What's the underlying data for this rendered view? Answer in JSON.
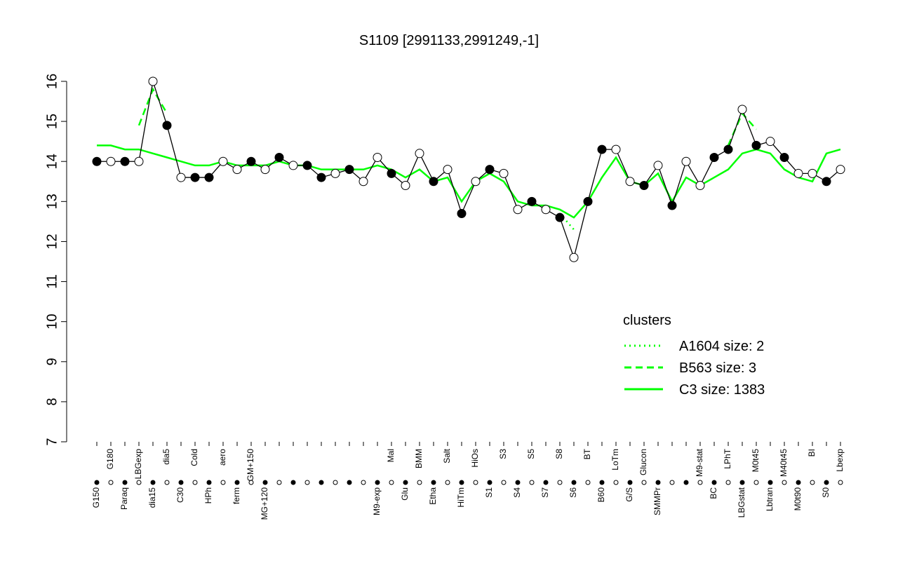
{
  "chart_data": {
    "type": "line",
    "title": "S1109 [2991133,2991249,-1]",
    "categories": [
      "G150",
      "G180",
      "Paraq",
      "LBGexp",
      "dia15",
      "dia5",
      "C30",
      "Cold",
      "HPh",
      "aero",
      "ferm",
      "GM+150",
      "MG+120",
      null,
      null,
      null,
      null,
      null,
      null,
      null,
      "M9-exp",
      "Mal",
      "Glu",
      "BMM",
      "Etha",
      "Salt",
      "HiTm",
      "HiOs",
      "S1",
      "S3",
      "S4",
      "S5",
      "S7",
      "S8",
      "S6",
      "BT",
      "B60",
      "LoTm",
      "G/S",
      "Glucon",
      "SMMPr",
      null,
      null,
      "M9-stat",
      "BC",
      "LPhT",
      "LBGstat",
      "M0t45",
      "Lbtran",
      "M40t45",
      "M0t90",
      "BI",
      "S0",
      "Lbexp"
    ],
    "series": [
      {
        "name": "expression",
        "color": "#000000",
        "values": [
          14.0,
          14.0,
          14.0,
          14.0,
          16.0,
          14.9,
          13.6,
          13.6,
          13.6,
          14.0,
          13.8,
          14.0,
          13.8,
          14.1,
          13.9,
          13.9,
          13.6,
          13.7,
          13.8,
          13.5,
          14.1,
          13.7,
          13.4,
          14.2,
          13.5,
          13.8,
          12.7,
          13.5,
          13.8,
          13.7,
          12.8,
          13.0,
          12.8,
          12.6,
          11.6,
          13.0,
          14.3,
          14.3,
          13.5,
          13.4,
          13.9,
          12.9,
          14.0,
          13.4,
          14.1,
          14.3,
          15.3,
          14.4,
          14.5,
          14.1,
          13.7,
          13.7,
          13.5,
          13.8
        ],
        "filled": [
          true,
          false,
          true,
          false,
          false,
          true,
          false,
          true,
          true,
          false,
          false,
          true,
          false,
          true,
          false,
          true,
          true,
          false,
          true,
          false,
          false,
          true,
          false,
          false,
          true,
          false,
          true,
          false,
          true,
          false,
          false,
          true,
          false,
          true,
          false,
          true,
          true,
          false,
          false,
          true,
          false,
          true,
          false,
          false,
          true,
          true,
          false,
          true,
          false,
          true,
          false,
          false,
          true,
          false
        ]
      },
      {
        "name": "A1604 size: 2",
        "color": "#00ff00",
        "dash": "dotted",
        "values": [
          null,
          null,
          null,
          null,
          null,
          null,
          null,
          null,
          null,
          null,
          null,
          null,
          null,
          null,
          null,
          null,
          null,
          null,
          null,
          null,
          null,
          null,
          null,
          null,
          null,
          null,
          null,
          null,
          null,
          null,
          null,
          null,
          null,
          12.7,
          12.3,
          null,
          null,
          null,
          null,
          null,
          null,
          null,
          null,
          null,
          null,
          null,
          null,
          null,
          null,
          null,
          null,
          null,
          null,
          null
        ]
      },
      {
        "name": "B563 size: 3",
        "color": "#00ff00",
        "dash": "dashed",
        "values": [
          null,
          null,
          null,
          14.9,
          15.8,
          15.2,
          null,
          null,
          null,
          null,
          null,
          null,
          null,
          null,
          null,
          null,
          null,
          null,
          null,
          null,
          null,
          null,
          null,
          null,
          null,
          null,
          null,
          null,
          null,
          null,
          null,
          null,
          null,
          null,
          null,
          null,
          null,
          null,
          null,
          null,
          null,
          null,
          null,
          null,
          null,
          14.4,
          15.2,
          14.8,
          null,
          null,
          null,
          null,
          null,
          null
        ]
      },
      {
        "name": "C3 size: 1383",
        "color": "#00ff00",
        "dash": "solid",
        "values": [
          14.4,
          14.4,
          14.3,
          14.3,
          14.2,
          14.1,
          14.0,
          13.9,
          13.9,
          14.0,
          13.9,
          13.9,
          13.9,
          14.0,
          13.9,
          13.9,
          13.8,
          13.8,
          13.8,
          13.8,
          13.9,
          13.8,
          13.6,
          13.8,
          13.5,
          13.6,
          13.0,
          13.5,
          13.7,
          13.5,
          13.0,
          12.9,
          12.9,
          12.8,
          12.6,
          13.0,
          13.6,
          14.1,
          13.5,
          13.4,
          13.7,
          13.0,
          13.6,
          13.4,
          13.6,
          13.8,
          14.2,
          14.3,
          14.2,
          13.8,
          13.6,
          13.5,
          14.2,
          14.3
        ]
      }
    ],
    "legend_title": "clusters",
    "legend_color": "#00ff00",
    "ylim": [
      7,
      16
    ],
    "yticks": [
      7,
      8,
      9,
      10,
      11,
      12,
      13,
      14,
      15,
      16
    ]
  }
}
